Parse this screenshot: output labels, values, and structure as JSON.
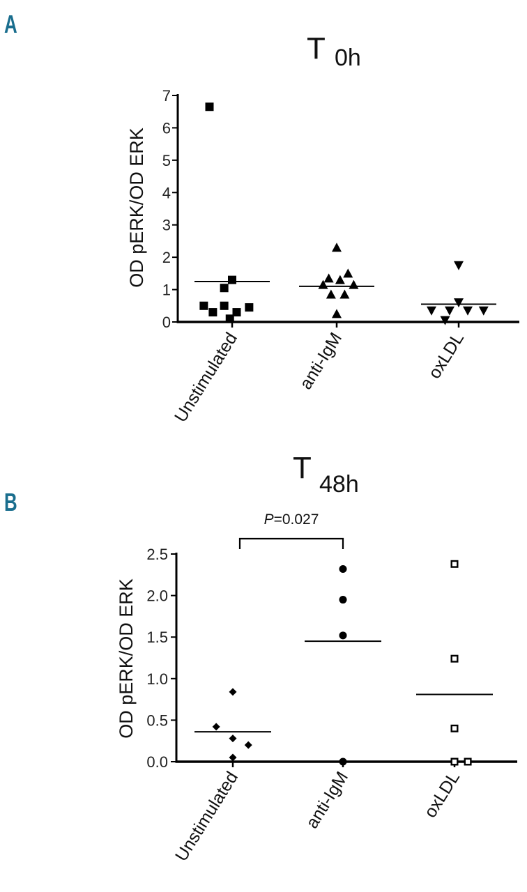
{
  "figure": {
    "panel_a_label": "A",
    "panel_b_label": "B",
    "panel_label_color": "#1a6e8e"
  },
  "chart_data": [
    {
      "type": "scatter",
      "panel": "A",
      "title": "T",
      "title_subscript": "0h",
      "ylabel": "OD pERK/OD ERK",
      "xlabel": "",
      "ylim": [
        0,
        7
      ],
      "yticks": [
        0,
        1,
        2,
        3,
        4,
        5,
        6,
        7
      ],
      "ytick_labels": [
        "0",
        "1",
        "2",
        "3",
        "4",
        "5",
        "6",
        "7"
      ],
      "categories": [
        "Unstimulated",
        "anti-IgM",
        "oxLDL"
      ],
      "grid": false,
      "series": [
        {
          "category": "Unstimulated",
          "marker": "square-filled",
          "points": [
            [
              -0.2,
              6.65
            ],
            [
              0.0,
              1.3
            ],
            [
              -0.07,
              1.05
            ],
            [
              -0.25,
              0.5
            ],
            [
              -0.07,
              0.5
            ],
            [
              0.15,
              0.45
            ],
            [
              -0.17,
              0.3
            ],
            [
              0.04,
              0.3
            ],
            [
              -0.02,
              0.1
            ]
          ],
          "mean": 1.25
        },
        {
          "category": "anti-IgM",
          "marker": "triangle-up-filled",
          "points": [
            [
              0.0,
              2.3
            ],
            [
              0.1,
              1.5
            ],
            [
              -0.07,
              1.35
            ],
            [
              0.03,
              1.3
            ],
            [
              -0.12,
              1.15
            ],
            [
              0.15,
              1.15
            ],
            [
              -0.05,
              0.85
            ],
            [
              0.07,
              0.85
            ],
            [
              0.0,
              0.25
            ]
          ],
          "mean": 1.1
        },
        {
          "category": "oxLDL",
          "marker": "triangle-down-filled",
          "points": [
            [
              0.0,
              1.75
            ],
            [
              0.0,
              0.6
            ],
            [
              -0.24,
              0.35
            ],
            [
              -0.08,
              0.35
            ],
            [
              0.08,
              0.35
            ],
            [
              0.22,
              0.35
            ],
            [
              -0.12,
              0.05
            ]
          ],
          "mean": 0.55
        }
      ]
    },
    {
      "type": "scatter",
      "panel": "B",
      "title": "T",
      "title_subscript": "48h",
      "ylabel": "OD pERK/OD ERK",
      "xlabel": "",
      "ylim": [
        0,
        2.5
      ],
      "yticks": [
        0,
        0.5,
        1.0,
        1.5,
        2.0,
        2.5
      ],
      "ytick_labels": [
        "0.0",
        "0.5",
        "1.0",
        "1.5",
        "2.0",
        "2.5"
      ],
      "categories": [
        "Unstimulated",
        "anti-IgM",
        "oxLDL"
      ],
      "grid": false,
      "annotation": {
        "text_italic": "P",
        "text_rest": "=0.027",
        "from": "Unstimulated",
        "to": "anti-IgM"
      },
      "series": [
        {
          "category": "Unstimulated",
          "marker": "diamond-filled",
          "points": [
            [
              0.0,
              0.84
            ],
            [
              -0.15,
              0.42
            ],
            [
              0.0,
              0.28
            ],
            [
              0.14,
              0.2
            ],
            [
              0.0,
              0.05
            ]
          ],
          "mean": 0.36
        },
        {
          "category": "anti-IgM",
          "marker": "circle-filled",
          "points": [
            [
              0.0,
              2.32
            ],
            [
              0.0,
              1.95
            ],
            [
              0.0,
              1.52
            ],
            [
              0.0,
              0.0
            ]
          ],
          "mean": 1.45
        },
        {
          "category": "oxLDL",
          "marker": "square-open",
          "points": [
            [
              0.0,
              2.38
            ],
            [
              0.0,
              1.24
            ],
            [
              0.0,
              0.4
            ],
            [
              0.0,
              0.0
            ],
            [
              0.12,
              0.0
            ]
          ],
          "mean": 0.81
        }
      ]
    }
  ]
}
